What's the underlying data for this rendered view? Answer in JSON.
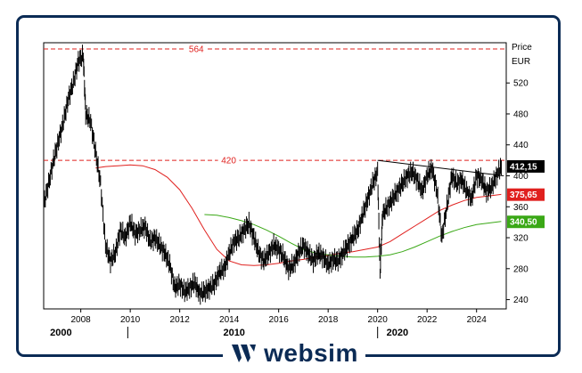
{
  "brand": {
    "name": "websim",
    "color": "#0b2b55"
  },
  "chart_data": {
    "type": "line",
    "ylabel": "Price",
    "unit": "EUR",
    "ylim": [
      228,
      572
    ],
    "xlim": [
      2006.5,
      2025.2
    ],
    "y_ticks": [
      240,
      280,
      320,
      360,
      400,
      440,
      480,
      520
    ],
    "x_ticks": [
      "2008",
      "2010",
      "2012",
      "2014",
      "2016",
      "2018",
      "2020",
      "2022",
      "2024"
    ],
    "era_labels": [
      "2000",
      "2010",
      "2020"
    ],
    "grid": false,
    "levels": [
      {
        "label": "564",
        "value": 564,
        "color": "#e0201e"
      },
      {
        "label": "420",
        "value": 420,
        "color": "#e0201e"
      }
    ],
    "trendline": {
      "x": [
        2020.0,
        2025.1
      ],
      "y": [
        420,
        400
      ],
      "color": "#000000"
    },
    "price_badges": [
      {
        "label": "412,15",
        "value": 412.15,
        "bg": "#000000",
        "fg": "#ffffff"
      },
      {
        "label": "375,65",
        "value": 375.65,
        "bg": "#e0201e",
        "fg": "#ffffff"
      },
      {
        "label": "340,50",
        "value": 340.5,
        "bg": "#3aa816",
        "fg": "#ffffff"
      }
    ],
    "series": [
      {
        "name": "Price",
        "color": "#000000",
        "style": "bars",
        "x": [
          2006.5,
          2006.7,
          2006.9,
          2007.1,
          2007.3,
          2007.5,
          2007.7,
          2007.9,
          2008.1,
          2008.2,
          2008.4,
          2008.6,
          2008.8,
          2009.0,
          2009.2,
          2009.4,
          2009.6,
          2009.8,
          2010.0,
          2010.2,
          2010.4,
          2010.6,
          2010.8,
          2011.0,
          2011.2,
          2011.4,
          2011.6,
          2011.8,
          2012.0,
          2012.2,
          2012.4,
          2012.6,
          2012.8,
          2013.0,
          2013.2,
          2013.4,
          2013.6,
          2013.8,
          2014.0,
          2014.2,
          2014.4,
          2014.6,
          2014.8,
          2015.0,
          2015.2,
          2015.4,
          2015.6,
          2015.8,
          2016.0,
          2016.2,
          2016.4,
          2016.6,
          2016.8,
          2017.0,
          2017.2,
          2017.4,
          2017.6,
          2017.8,
          2018.0,
          2018.2,
          2018.4,
          2018.6,
          2018.8,
          2019.0,
          2019.2,
          2019.4,
          2019.6,
          2019.8,
          2020.0,
          2020.1,
          2020.2,
          2020.4,
          2020.6,
          2020.8,
          2021.0,
          2021.2,
          2021.4,
          2021.6,
          2021.8,
          2022.0,
          2022.2,
          2022.4,
          2022.6,
          2022.8,
          2023.0,
          2023.2,
          2023.4,
          2023.6,
          2023.8,
          2024.0,
          2024.2,
          2024.4,
          2024.6,
          2024.8,
          2025.0
        ],
        "values": [
          362,
          390,
          420,
          445,
          470,
          500,
          520,
          548,
          555,
          480,
          470,
          430,
          390,
          310,
          290,
          300,
          330,
          320,
          340,
          325,
          330,
          335,
          315,
          320,
          310,
          300,
          285,
          255,
          260,
          250,
          255,
          262,
          248,
          250,
          255,
          260,
          275,
          280,
          300,
          315,
          320,
          330,
          338,
          320,
          300,
          290,
          300,
          310,
          305,
          295,
          280,
          285,
          300,
          310,
          300,
          290,
          300,
          295,
          285,
          292,
          290,
          300,
          310,
          320,
          330,
          350,
          370,
          390,
          405,
          275,
          350,
          360,
          370,
          380,
          390,
          400,
          405,
          395,
          380,
          400,
          410,
          380,
          320,
          360,
          400,
          390,
          395,
          380,
          370,
          400,
          395,
          380,
          385,
          400,
          412
        ]
      },
      {
        "name": "MA red",
        "color": "#e0201e",
        "style": "line",
        "x": [
          2008.6,
          2009.0,
          2009.5,
          2010.0,
          2010.5,
          2011.0,
          2011.5,
          2012.0,
          2012.5,
          2013.0,
          2013.5,
          2014.0,
          2014.5,
          2015.0,
          2015.5,
          2016.0,
          2016.5,
          2017.0,
          2017.5,
          2018.0,
          2018.5,
          2019.0,
          2019.5,
          2020.0,
          2020.5,
          2021.0,
          2021.5,
          2022.0,
          2022.5,
          2023.0,
          2023.5,
          2024.0,
          2024.5,
          2025.0
        ],
        "values": [
          410,
          412,
          413,
          414,
          413,
          408,
          398,
          382,
          358,
          330,
          305,
          290,
          285,
          284,
          285,
          287,
          290,
          292,
          295,
          297,
          300,
          302,
          305,
          308,
          315,
          325,
          335,
          345,
          355,
          362,
          368,
          372,
          374,
          376
        ]
      },
      {
        "name": "MA green",
        "color": "#3aa816",
        "style": "line",
        "x": [
          2013.0,
          2013.5,
          2014.0,
          2014.5,
          2015.0,
          2015.5,
          2016.0,
          2016.5,
          2017.0,
          2017.5,
          2018.0,
          2018.5,
          2019.0,
          2019.5,
          2020.0,
          2020.5,
          2021.0,
          2021.5,
          2022.0,
          2022.5,
          2023.0,
          2023.5,
          2024.0,
          2024.5,
          2025.0
        ],
        "values": [
          350,
          349,
          346,
          342,
          337,
          330,
          322,
          313,
          305,
          300,
          298,
          296,
          295,
          295,
          296,
          298,
          302,
          308,
          315,
          322,
          328,
          333,
          337,
          339,
          341
        ]
      }
    ]
  }
}
